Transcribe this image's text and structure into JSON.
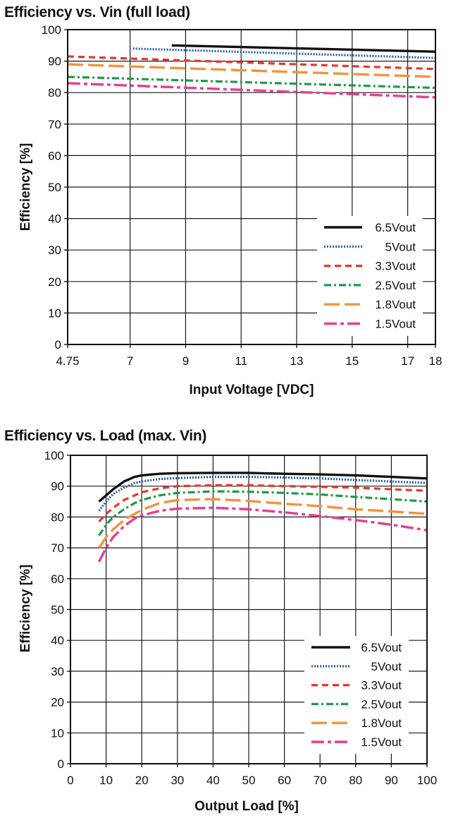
{
  "chart_data": [
    {
      "type": "line",
      "title": "Efficiency vs. Vin (full load)",
      "xlabel": "Input Voltage [VDC]",
      "ylabel": "Efficiency [%]",
      "xlim": [
        4.75,
        18
      ],
      "ylim": [
        0,
        100
      ],
      "x_ticks": [
        4.75,
        7,
        9,
        11,
        13,
        15,
        17,
        18
      ],
      "x_tick_labels": [
        "4.75",
        "7",
        "9",
        "11",
        "13",
        "15",
        "17",
        "18"
      ],
      "y_ticks": [
        0,
        10,
        20,
        30,
        40,
        50,
        60,
        70,
        80,
        90,
        100
      ],
      "y_tick_labels": [
        "0",
        "10",
        "20",
        "30",
        "40",
        "50",
        "60",
        "70",
        "80",
        "90",
        "100"
      ],
      "grid": true,
      "legend_position": "bottom-right",
      "series": [
        {
          "name": "6.5Vout",
          "color": "#111111",
          "style": "solid",
          "x": [
            8.5,
            18
          ],
          "y": [
            95.0,
            93.0
          ]
        },
        {
          "name": "5Vout",
          "color": "#2a5db0",
          "style": "dotted",
          "x": [
            7.1,
            18
          ],
          "y": [
            94.0,
            91.0
          ]
        },
        {
          "name": "3.3Vout",
          "color": "#e8352b",
          "style": "dashed",
          "x": [
            4.75,
            18
          ],
          "y": [
            91.5,
            87.5
          ]
        },
        {
          "name": "2.5Vout",
          "color": "#1e9a4a",
          "style": "dashdot",
          "x": [
            4.75,
            18
          ],
          "y": [
            85.0,
            81.5
          ]
        },
        {
          "name": "1.8Vout",
          "color": "#f5923a",
          "style": "longdash",
          "x": [
            4.75,
            18
          ],
          "y": [
            89.0,
            85.0
          ]
        },
        {
          "name": "1.5Vout",
          "color": "#e83e8c",
          "style": "dashdotlong",
          "x": [
            4.75,
            18
          ],
          "y": [
            83.0,
            78.5
          ]
        }
      ]
    },
    {
      "type": "line",
      "title": "Efficiency vs. Load (max. Vin)",
      "xlabel": "Output Load [%]",
      "ylabel": "Efficiency [%]",
      "xlim": [
        0,
        100
      ],
      "ylim": [
        0,
        100
      ],
      "x_ticks": [
        0,
        10,
        20,
        30,
        40,
        50,
        60,
        70,
        80,
        90,
        100
      ],
      "x_tick_labels": [
        "0",
        "10",
        "20",
        "30",
        "40",
        "50",
        "60",
        "70",
        "80",
        "90",
        "100"
      ],
      "y_ticks": [
        0,
        10,
        20,
        30,
        40,
        50,
        60,
        70,
        80,
        90,
        100
      ],
      "y_tick_labels": [
        "0",
        "10",
        "20",
        "30",
        "40",
        "50",
        "60",
        "70",
        "80",
        "90",
        "100"
      ],
      "grid": true,
      "legend_position": "bottom-right",
      "series": [
        {
          "name": "6.5Vout",
          "color": "#111111",
          "style": "solid",
          "x": [
            8,
            10,
            12,
            15,
            18,
            20,
            25,
            30,
            40,
            50,
            60,
            70,
            80,
            90,
            100
          ],
          "y": [
            85,
            87,
            89,
            91.5,
            93,
            93.5,
            94,
            94.2,
            94.3,
            94.3,
            94,
            93.8,
            93.5,
            93,
            92.5
          ]
        },
        {
          "name": "5Vout",
          "color": "#2a5db0",
          "style": "dotted",
          "x": [
            8,
            10,
            12,
            15,
            18,
            20,
            25,
            30,
            40,
            50,
            60,
            70,
            80,
            90,
            100
          ],
          "y": [
            82,
            85,
            87.5,
            89.5,
            91,
            91.5,
            92.3,
            92.6,
            93,
            93,
            92.8,
            92.5,
            92,
            91.5,
            91
          ]
        },
        {
          "name": "3.3Vout",
          "color": "#e8352b",
          "style": "dashed",
          "x": [
            8,
            10,
            12,
            15,
            18,
            20,
            25,
            30,
            40,
            50,
            60,
            70,
            80,
            90,
            100
          ],
          "y": [
            78.5,
            81,
            83,
            85.5,
            87,
            88,
            89.3,
            90,
            90.3,
            90.3,
            90,
            89.8,
            89.5,
            89,
            88.5
          ]
        },
        {
          "name": "2.5Vout",
          "color": "#1e9a4a",
          "style": "dashdot",
          "x": [
            8,
            10,
            12,
            15,
            18,
            20,
            25,
            30,
            40,
            50,
            60,
            70,
            80,
            90,
            100
          ],
          "y": [
            74,
            77.5,
            80,
            82.5,
            84.5,
            85.5,
            87,
            87.8,
            88.3,
            88.2,
            87.8,
            87.3,
            86.5,
            85.8,
            85
          ]
        },
        {
          "name": "1.8Vout",
          "color": "#f5923a",
          "style": "longdash",
          "x": [
            8,
            10,
            12,
            15,
            18,
            20,
            25,
            30,
            40,
            50,
            60,
            70,
            80,
            90,
            100
          ],
          "y": [
            70,
            73.5,
            76,
            79,
            81,
            82.3,
            84.5,
            85.5,
            85.8,
            85.2,
            84.3,
            83.5,
            82.5,
            81.8,
            81
          ]
        },
        {
          "name": "1.5Vout",
          "color": "#e83e8c",
          "style": "dashdotlong",
          "x": [
            8,
            10,
            12,
            15,
            18,
            20,
            25,
            30,
            40,
            50,
            60,
            70,
            80,
            90,
            100
          ],
          "y": [
            65.5,
            70,
            73.5,
            77,
            79.5,
            80.5,
            82,
            82.7,
            83,
            82.5,
            81.5,
            80.3,
            79,
            77.5,
            75.7
          ]
        }
      ]
    }
  ]
}
